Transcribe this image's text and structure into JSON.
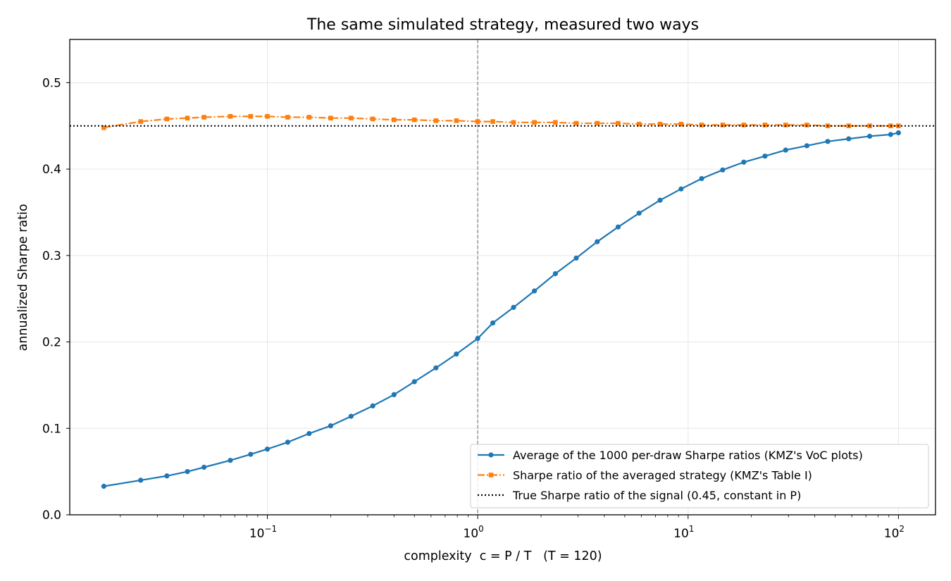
{
  "chart_data": {
    "type": "line",
    "title": "The same simulated strategy, measured two ways",
    "xlabel": "complexity  c = P / T   (T = 120)",
    "ylabel": "annualized Sharpe ratio",
    "xscale": "log",
    "xlim": [
      0.0115,
      150
    ],
    "ylim": [
      0.0,
      0.55
    ],
    "grid": true,
    "legend_position": "lower right",
    "x_ticks": [
      {
        "value": 0.1,
        "base": "10",
        "exp": "−1"
      },
      {
        "value": 1,
        "base": "10",
        "exp": "0"
      },
      {
        "value": 10,
        "base": "10",
        "exp": "1"
      },
      {
        "value": 100,
        "base": "10",
        "exp": "2"
      }
    ],
    "y_ticks": [
      "0.0",
      "0.1",
      "0.2",
      "0.3",
      "0.4",
      "0.5"
    ],
    "vline": {
      "x": 1,
      "style": "dashed",
      "color": "#808080"
    },
    "x": [
      0.0167,
      0.025,
      0.0333,
      0.0417,
      0.05,
      0.0667,
      0.0833,
      0.1,
      0.125,
      0.158,
      0.2,
      0.25,
      0.317,
      0.4,
      0.5,
      0.633,
      0.792,
      1.0,
      1.18,
      1.48,
      1.86,
      2.34,
      2.94,
      3.7,
      4.65,
      5.85,
      7.36,
      9.26,
      11.6,
      14.6,
      18.4,
      23.2,
      29.1,
      36.7,
      46.1,
      58.0,
      73.0,
      91.8,
      100
    ],
    "series": [
      {
        "name": "Average of the 1000 per-draw Sharpe ratios (KMZ's VoC plots)",
        "color": "#1f77b4",
        "linestyle": "solid",
        "marker": "circle",
        "values": [
          0.033,
          0.04,
          0.045,
          0.05,
          0.055,
          0.063,
          0.07,
          0.076,
          0.084,
          0.094,
          0.103,
          0.114,
          0.126,
          0.139,
          0.154,
          0.17,
          0.186,
          0.204,
          0.222,
          0.24,
          0.259,
          0.279,
          0.297,
          0.316,
          0.333,
          0.349,
          0.364,
          0.377,
          0.389,
          0.399,
          0.408,
          0.415,
          0.422,
          0.427,
          0.432,
          0.435,
          0.438,
          0.44,
          0.442
        ]
      },
      {
        "name": "Sharpe ratio of the averaged strategy (KMZ's Table I)",
        "color": "#ff7f0e",
        "linestyle": "dashdot",
        "marker": "square",
        "values": [
          0.448,
          0.455,
          0.458,
          0.459,
          0.46,
          0.461,
          0.461,
          0.461,
          0.46,
          0.46,
          0.459,
          0.459,
          0.458,
          0.457,
          0.457,
          0.456,
          0.456,
          0.455,
          0.455,
          0.454,
          0.454,
          0.454,
          0.453,
          0.453,
          0.453,
          0.452,
          0.452,
          0.452,
          0.451,
          0.451,
          0.451,
          0.451,
          0.451,
          0.451,
          0.45,
          0.45,
          0.45,
          0.45,
          0.45
        ]
      },
      {
        "name": "True Sharpe ratio of the signal (0.45, constant in P)",
        "color": "#000000",
        "linestyle": "dotted",
        "marker": "none",
        "constant": 0.45
      }
    ]
  }
}
